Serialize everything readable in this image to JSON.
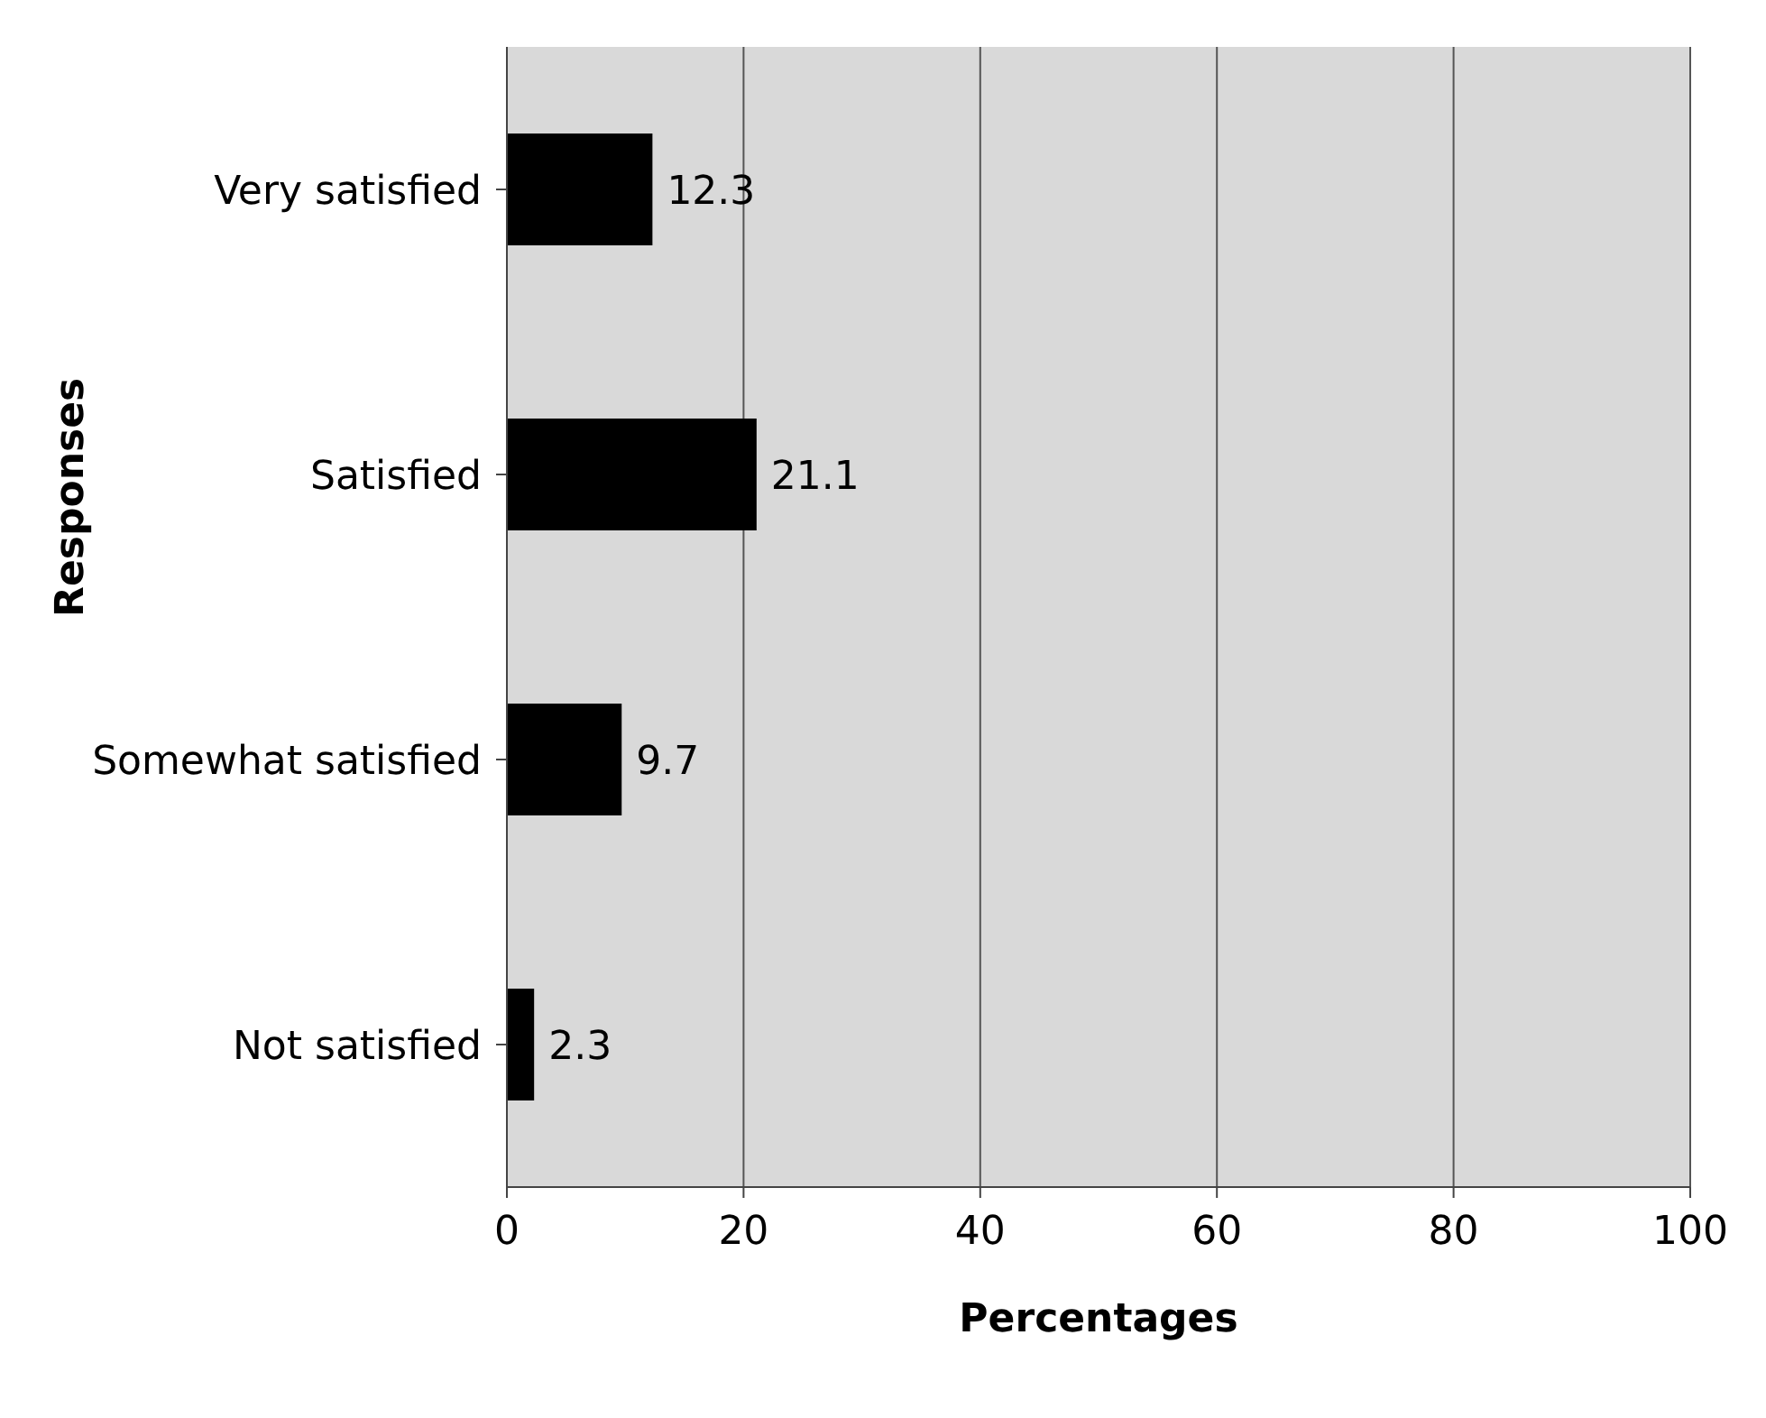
{
  "chart_data": {
    "type": "bar",
    "orientation": "horizontal",
    "xlabel": "Percentages",
    "ylabel": "Responses",
    "categories": [
      "Very satisfied",
      "Satisfied",
      "Somewhat satisfied",
      "Not satisfied"
    ],
    "values": [
      12.3,
      21.1,
      9.7,
      2.3
    ],
    "color": "#000000",
    "xlim": [
      0,
      100
    ],
    "xticks": [
      0,
      20,
      40,
      60,
      80,
      100
    ],
    "grid": "x",
    "data_labels": true
  }
}
